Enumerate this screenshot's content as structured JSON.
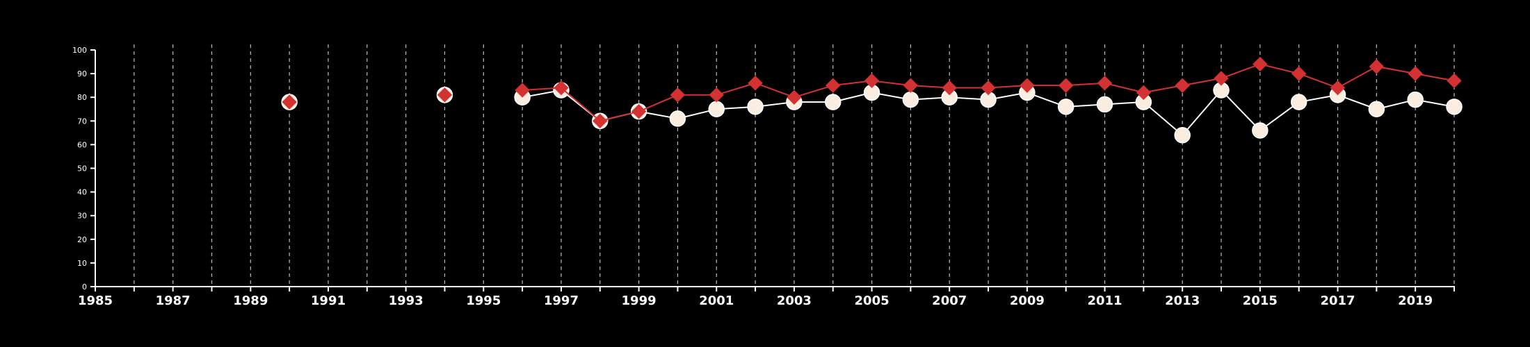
{
  "chart_data": {
    "type": "line",
    "title": "",
    "xlabel": "",
    "ylabel": "",
    "xlim": [
      1985,
      2020
    ],
    "ylim": [
      0,
      100
    ],
    "y_ticks": [
      0,
      10,
      20,
      30,
      40,
      50,
      60,
      70,
      80,
      90,
      100
    ],
    "x_tick_labels": [
      1985,
      1987,
      1989,
      1991,
      1993,
      1995,
      1997,
      1999,
      2001,
      2003,
      2005,
      2007,
      2009,
      2011,
      2013,
      2015,
      2017,
      2019
    ],
    "x_gridlines": [
      1986,
      1987,
      1988,
      1989,
      1990,
      1991,
      1992,
      1993,
      1994,
      1995,
      1996,
      1997,
      1998,
      1999,
      2000,
      2001,
      2002,
      2003,
      2004,
      2005,
      2006,
      2007,
      2008,
      2009,
      2010,
      2011,
      2012,
      2013,
      2014,
      2015,
      2016,
      2017,
      2018,
      2019,
      2020
    ],
    "grid": "vertical dashed",
    "legend": "none",
    "series": [
      {
        "marker": "circle",
        "color": "#fbeee0",
        "stroke": "#ffffff",
        "points": [
          {
            "x": 1990,
            "y": 78
          },
          {
            "x": 1994,
            "y": 81
          },
          {
            "x": 1996,
            "y": 80
          },
          {
            "x": 1997,
            "y": 83
          },
          {
            "x": 1998,
            "y": 70
          },
          {
            "x": 1999,
            "y": 74
          },
          {
            "x": 2000,
            "y": 71
          },
          {
            "x": 2001,
            "y": 75
          },
          {
            "x": 2002,
            "y": 76
          },
          {
            "x": 2003,
            "y": 78
          },
          {
            "x": 2004,
            "y": 78
          },
          {
            "x": 2005,
            "y": 82
          },
          {
            "x": 2006,
            "y": 79
          },
          {
            "x": 2007,
            "y": 80
          },
          {
            "x": 2008,
            "y": 79
          },
          {
            "x": 2009,
            "y": 82
          },
          {
            "x": 2010,
            "y": 76
          },
          {
            "x": 2011,
            "y": 77
          },
          {
            "x": 2012,
            "y": 78
          },
          {
            "x": 2013,
            "y": 64
          },
          {
            "x": 2014,
            "y": 83
          },
          {
            "x": 2015,
            "y": 66
          },
          {
            "x": 2016,
            "y": 78
          },
          {
            "x": 2017,
            "y": 81
          },
          {
            "x": 2018,
            "y": 75
          },
          {
            "x": 2019,
            "y": 79
          },
          {
            "x": 2020,
            "y": 76
          }
        ]
      },
      {
        "marker": "diamond",
        "color": "#d43232",
        "stroke": "#d43232",
        "points": [
          {
            "x": 1990,
            "y": 78
          },
          {
            "x": 1994,
            "y": 81
          },
          {
            "x": 1996,
            "y": 83
          },
          {
            "x": 1997,
            "y": 84
          },
          {
            "x": 1998,
            "y": 70
          },
          {
            "x": 1999,
            "y": 74
          },
          {
            "x": 2000,
            "y": 81
          },
          {
            "x": 2001,
            "y": 81
          },
          {
            "x": 2002,
            "y": 86
          },
          {
            "x": 2003,
            "y": 80
          },
          {
            "x": 2004,
            "y": 85
          },
          {
            "x": 2005,
            "y": 87
          },
          {
            "x": 2006,
            "y": 85
          },
          {
            "x": 2007,
            "y": 84
          },
          {
            "x": 2008,
            "y": 84
          },
          {
            "x": 2009,
            "y": 85
          },
          {
            "x": 2010,
            "y": 85
          },
          {
            "x": 2011,
            "y": 86
          },
          {
            "x": 2012,
            "y": 82
          },
          {
            "x": 2013,
            "y": 85
          },
          {
            "x": 2014,
            "y": 88
          },
          {
            "x": 2015,
            "y": 94
          },
          {
            "x": 2016,
            "y": 90
          },
          {
            "x": 2017,
            "y": 84
          },
          {
            "x": 2018,
            "y": 93
          },
          {
            "x": 2019,
            "y": 90
          },
          {
            "x": 2020,
            "y": 87
          }
        ]
      }
    ]
  }
}
